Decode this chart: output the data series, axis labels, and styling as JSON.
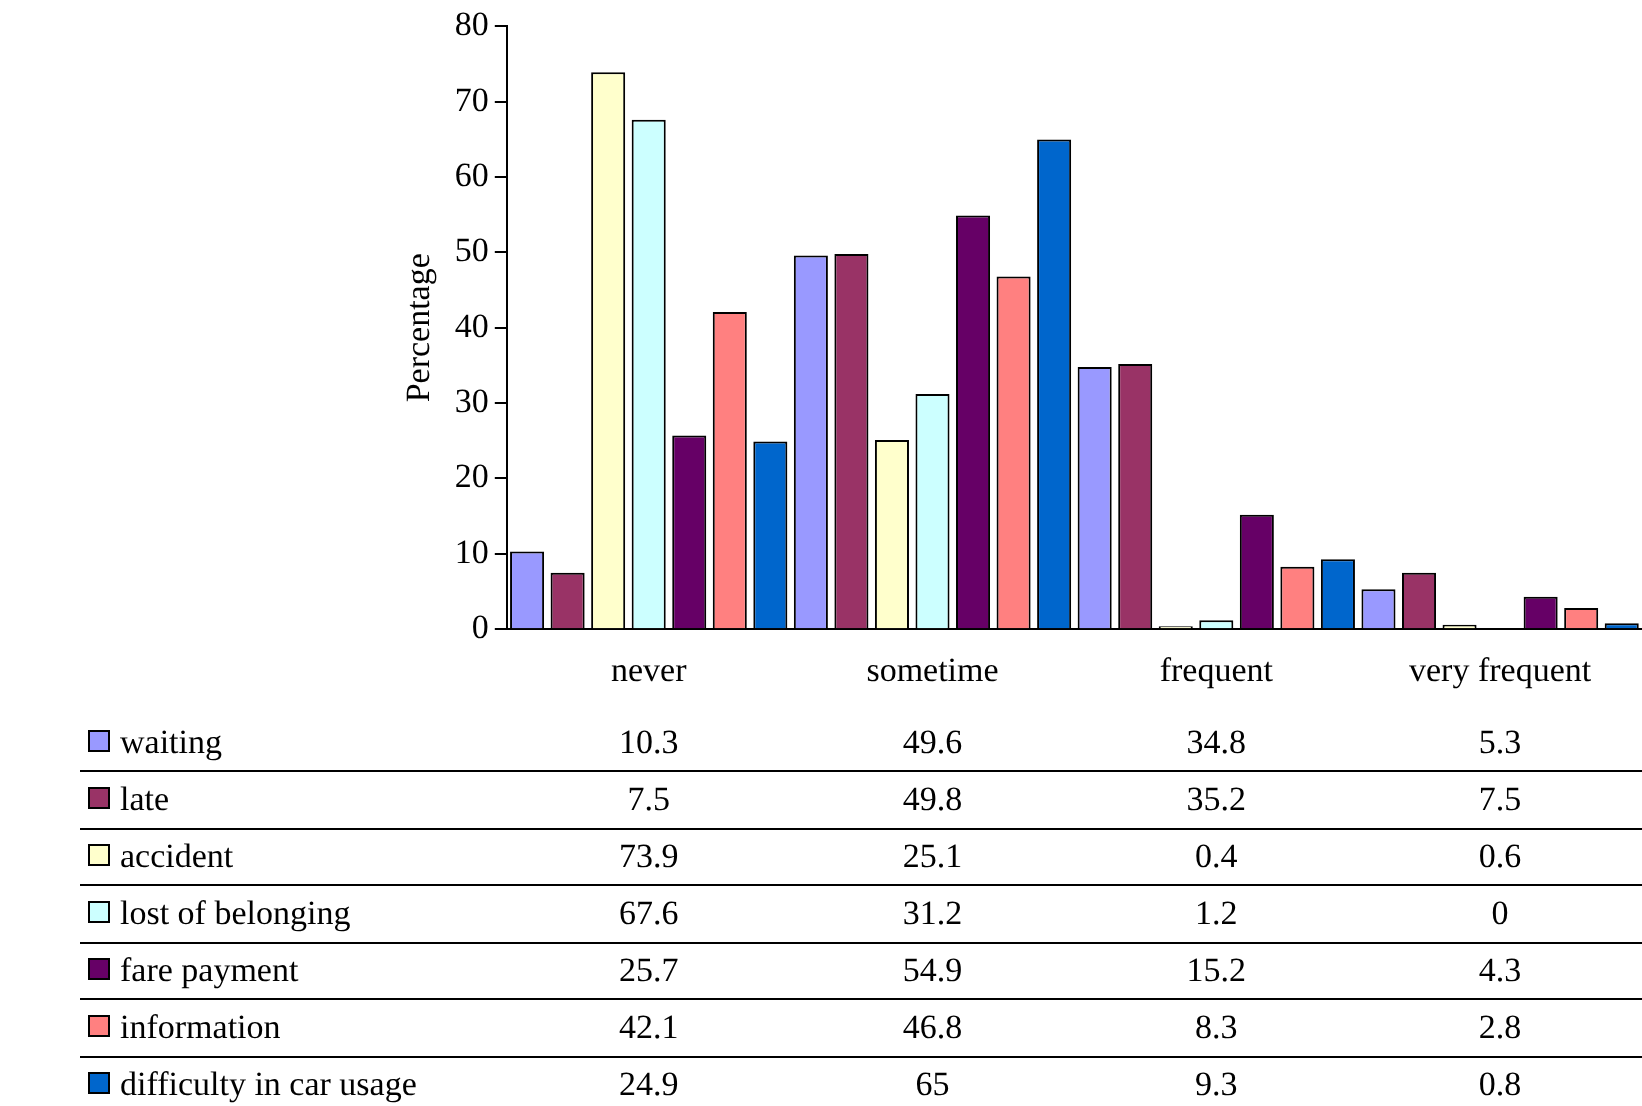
{
  "chart_data": {
    "type": "bar",
    "ylabel": "Percentage",
    "categories": [
      "never",
      "sometime",
      "frequent",
      "very frequent"
    ],
    "series": [
      {
        "name": "waiting",
        "color": "#9999ff",
        "values": [
          10.3,
          49.6,
          34.8,
          5.3
        ]
      },
      {
        "name": "late",
        "color": "#993366",
        "values": [
          7.5,
          49.8,
          35.2,
          7.5
        ]
      },
      {
        "name": "accident",
        "color": "#ffffcc",
        "values": [
          73.9,
          25.1,
          0.4,
          0.6
        ]
      },
      {
        "name": "lost of belonging",
        "color": "#ccffff",
        "values": [
          67.6,
          31.2,
          1.2,
          0
        ]
      },
      {
        "name": "fare payment",
        "color": "#660066",
        "values": [
          25.7,
          54.9,
          15.2,
          4.3
        ]
      },
      {
        "name": "information",
        "color": "#ff8080",
        "values": [
          42.1,
          46.8,
          8.3,
          2.8
        ]
      },
      {
        "name": "difficulty in car usage",
        "color": "#0066cc",
        "values": [
          24.9,
          65,
          9.3,
          0.8
        ]
      }
    ],
    "ylim": [
      0,
      80
    ],
    "yticks": [
      0,
      10,
      20,
      30,
      40,
      50,
      60,
      70,
      80
    ],
    "grid": false,
    "legend": "bottom",
    "data_labels": true
  }
}
